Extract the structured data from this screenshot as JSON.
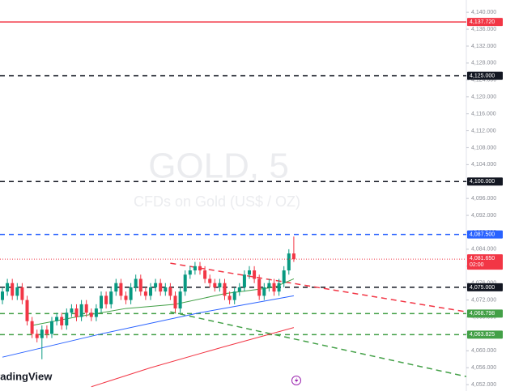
{
  "chart_data": {
    "type": "candlestick",
    "watermark_title": "GOLD, 5",
    "watermark_subtitle": "CFDs on Gold (US$ / OZ)",
    "logo": "TradingView",
    "ylim": [
      4050.5,
      4142.9
    ],
    "yticks": [
      {
        "value": 4052,
        "label": "4,052.000"
      },
      {
        "value": 4056,
        "label": "4,056.000"
      },
      {
        "value": 4060,
        "label": "4,060.000"
      },
      {
        "value": 4064,
        "label": "4,064.000"
      },
      {
        "value": 4068,
        "label": "4,068.000"
      },
      {
        "value": 4072,
        "label": "4,072.000"
      },
      {
        "value": 4076,
        "label": "4,076.000"
      },
      {
        "value": 4080,
        "label": "4,080.000"
      },
      {
        "value": 4084,
        "label": "4,084.000"
      },
      {
        "value": 4088,
        "label": "4,088.000"
      },
      {
        "value": 4092,
        "label": "4,092.000"
      },
      {
        "value": 4096,
        "label": "4,096.000"
      },
      {
        "value": 4100,
        "label": "4,100.000"
      },
      {
        "value": 4104,
        "label": "4,104.000"
      },
      {
        "value": 4108,
        "label": "4,108.000"
      },
      {
        "value": 4112,
        "label": "4,112.000"
      },
      {
        "value": 4116,
        "label": "4,116.000"
      },
      {
        "value": 4120,
        "label": "4,120.000"
      },
      {
        "value": 4124,
        "label": "4,124.000"
      },
      {
        "value": 4128,
        "label": "4,128.000"
      },
      {
        "value": 4132,
        "label": "4,132.000"
      },
      {
        "value": 4136,
        "label": "4,136.000"
      },
      {
        "value": 4140,
        "label": "4,140.000"
      }
    ],
    "up_color": "#089981",
    "down_color": "#f23645",
    "open": [
      4072,
      4074,
      4076,
      4073,
      4075,
      4072,
      4067,
      4064,
      4063,
      4065,
      4064,
      4067,
      4068,
      4066,
      4069,
      4070,
      4068,
      4071,
      4069,
      4068,
      4070,
      4073,
      4071,
      4074,
      4076,
      4073,
      4072,
      4075,
      4077,
      4074,
      4073,
      4075,
      4076,
      4074,
      4075,
      4073,
      4070,
      4074,
      4078,
      4079,
      4080,
      4079,
      4077,
      4076,
      4075,
      4076,
      4073,
      4072,
      4074,
      4075,
      4078,
      4079,
      4077,
      4073,
      4075,
      4076,
      4074,
      4076,
      4079,
      4083
    ],
    "high": [
      4075,
      4077,
      4077,
      4076,
      4076,
      4073,
      4068,
      4065,
      4066,
      4066,
      4068,
      4069,
      4069,
      4070,
      4071,
      4071,
      4072,
      4072,
      4070,
      4071,
      4074,
      4074,
      4075,
      4077,
      4077,
      4074,
      4076,
      4078,
      4078,
      4075,
      4076,
      4077,
      4077,
      4076,
      4076,
      4074,
      4075,
      4079,
      4080,
      4081,
      4081,
      4080,
      4078,
      4077,
      4077,
      4077,
      4074,
      4075,
      4076,
      4079,
      4080,
      4080,
      4078,
      4076,
      4077,
      4077,
      4077,
      4080,
      4084,
      4087
    ],
    "low": [
      4071,
      4073,
      4072,
      4072,
      4071,
      4066,
      4063,
      4062,
      4058,
      4063,
      4063,
      4066,
      4065,
      4065,
      4068,
      4067,
      4067,
      4068,
      4067,
      4067,
      4069,
      4070,
      4070,
      4073,
      4072,
      4071,
      4071,
      4074,
      4073,
      4072,
      4072,
      4074,
      4073,
      4073,
      4072,
      4069,
      4069,
      4073,
      4077,
      4078,
      4078,
      4076,
      4075,
      4074,
      4074,
      4072,
      4071,
      4071,
      4073,
      4074,
      4077,
      4076,
      4072,
      4072,
      4074,
      4073,
      4073,
      4075,
      4078,
      4081
    ],
    "close": [
      4074,
      4076,
      4073,
      4075,
      4072,
      4067,
      4064,
      4063,
      4065,
      4064,
      4067,
      4068,
      4066,
      4069,
      4070,
      4068,
      4071,
      4069,
      4068,
      4070,
      4073,
      4071,
      4074,
      4076,
      4073,
      4072,
      4075,
      4077,
      4074,
      4073,
      4075,
      4076,
      4074,
      4075,
      4073,
      4070,
      4074,
      4078,
      4079,
      4080,
      4079,
      4077,
      4076,
      4075,
      4076,
      4073,
      4072,
      4074,
      4075,
      4078,
      4079,
      4077,
      4073,
      4075,
      4076,
      4074,
      4076,
      4079,
      4083,
      4081.65
    ],
    "moving_averages": [
      {
        "color": "#43a047",
        "x": [
          6,
          15,
          25,
          35,
          45,
          55,
          59
        ],
        "values": [
          4066,
          4068,
          4070,
          4071,
          4073.5,
          4075,
          4077
        ]
      },
      {
        "color": "#2962ff",
        "x": [
          0,
          20,
          40,
          59
        ],
        "values": [
          4058.5,
          4064,
          4069,
          4073
        ]
      },
      {
        "color": "#f23645",
        "x": [
          18,
          30,
          45,
          59
        ],
        "values": [
          4051.5,
          4056,
          4061,
          4065.5
        ]
      }
    ],
    "trendlines": [
      {
        "color": "#f23645",
        "x": [
          34,
          94
        ],
        "values": [
          4080.7,
          4069.2
        ]
      },
      {
        "color": "#43a047",
        "x": [
          34,
          94
        ],
        "values": [
          4069.2,
          4053.9
        ]
      }
    ],
    "levels": [
      {
        "value": 4137.72,
        "label": "4,137.720",
        "color": "#f23645",
        "style": "solid"
      },
      {
        "value": 4125,
        "label": "4,125.000",
        "color": "#131722",
        "style": "dashed"
      },
      {
        "value": 4100,
        "label": "4,100.000",
        "color": "#131722",
        "style": "dashed"
      },
      {
        "value": 4087.5,
        "label": "4,087.500",
        "color": "#2962ff",
        "style": "dashed"
      },
      {
        "value": 4075,
        "label": "4,075.000",
        "color": "#131722",
        "style": "dashed"
      },
      {
        "value": 4068.798,
        "label": "4,068.798",
        "color": "#43a047",
        "style": "dashed"
      },
      {
        "value": 4063.825,
        "label": "4,063.825",
        "color": "#43a047",
        "style": "dashed"
      }
    ],
    "current_price": {
      "value": 4081.65,
      "label": "4,081.650",
      "countdown": "02:00",
      "color": "#f23645"
    }
  }
}
